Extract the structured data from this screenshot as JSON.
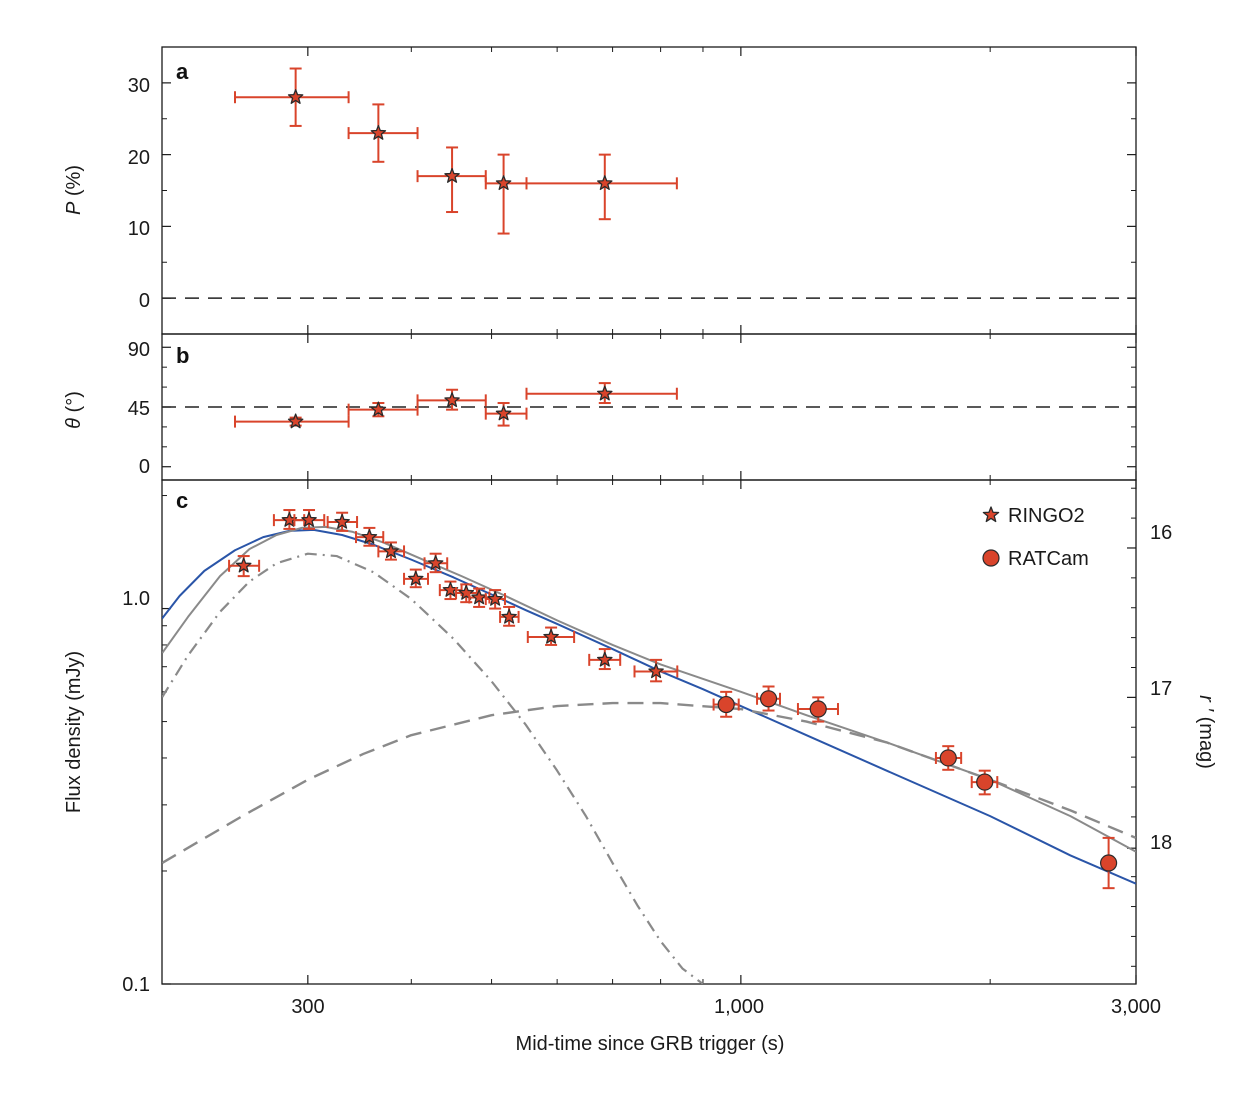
{
  "colors": {
    "data": "#d9442b",
    "err": "#d9442b",
    "blue": "#2a55a8",
    "gray": "#8a8a8a",
    "ref": "#222222",
    "frame": "#1a1a1a"
  },
  "chart_data": [
    {
      "id": "a",
      "type": "scatter",
      "panel_label": "a",
      "ylabel_var": "P",
      "ylabel_unit": " (%)",
      "xscale": "log",
      "xlim": [
        200,
        3000
      ],
      "ylim": [
        -5,
        35
      ],
      "yticks": [
        0,
        10,
        20,
        30
      ],
      "yticklabels": [
        "0",
        "10",
        "20",
        "30"
      ],
      "reference_line": 0,
      "points": [
        {
          "x": 290,
          "xlo": 245,
          "xhi": 336,
          "y": 28,
          "ylo": 24,
          "yhi": 32
        },
        {
          "x": 365,
          "xlo": 336,
          "xhi": 407,
          "y": 23,
          "ylo": 19,
          "yhi": 27
        },
        {
          "x": 448,
          "xlo": 407,
          "xhi": 492,
          "y": 17,
          "ylo": 12,
          "yhi": 21
        },
        {
          "x": 517,
          "xlo": 492,
          "xhi": 551,
          "y": 16,
          "ylo": 9,
          "yhi": 20
        },
        {
          "x": 685,
          "xlo": 551,
          "xhi": 837,
          "y": 16,
          "ylo": 11,
          "yhi": 20
        }
      ]
    },
    {
      "id": "b",
      "type": "scatter",
      "panel_label": "b",
      "ylabel_var": "θ",
      "ylabel_unit": " (°)",
      "xscale": "log",
      "xlim": [
        200,
        3000
      ],
      "ylim": [
        -10,
        100
      ],
      "yticks": [
        0,
        45,
        90
      ],
      "yticklabels": [
        "0",
        "45",
        "90"
      ],
      "reference_line": 45,
      "points": [
        {
          "x": 290,
          "xlo": 245,
          "xhi": 336,
          "y": 34,
          "ylo": 31,
          "yhi": 37
        },
        {
          "x": 365,
          "xlo": 336,
          "xhi": 407,
          "y": 43,
          "ylo": 38,
          "yhi": 48
        },
        {
          "x": 448,
          "xlo": 407,
          "xhi": 492,
          "y": 50,
          "ylo": 43,
          "yhi": 58
        },
        {
          "x": 517,
          "xlo": 492,
          "xhi": 551,
          "y": 40,
          "ylo": 31,
          "yhi": 48
        },
        {
          "x": 685,
          "xlo": 551,
          "xhi": 837,
          "y": 55,
          "ylo": 48,
          "yhi": 63
        }
      ]
    },
    {
      "id": "c",
      "type": "scatter",
      "panel_label": "c",
      "ylabel": "Flux density (mJy)",
      "right_ylabel_var": "r ′",
      "right_ylabel_unit": " (mag)",
      "xlabel": "Mid-time since GRB trigger (s)",
      "xscale": "log",
      "yscale": "log",
      "xlim": [
        200,
        3000
      ],
      "ylim": [
        0.1,
        2.2
      ],
      "xticks": [
        300,
        1000,
        3000
      ],
      "xticklabels": [
        "300",
        "1,000",
        "3,000"
      ],
      "yticks": [
        0.1,
        1.0
      ],
      "yticklabels": [
        "0.1",
        "1.0"
      ],
      "right_ticks": [
        16,
        17,
        18
      ],
      "right_ticklabels": [
        "16",
        "17",
        "18"
      ],
      "right_tick_flux": [
        1.45,
        0.58,
        0.23
      ],
      "legend": [
        "RINGO2",
        "RATCam"
      ],
      "series": [
        {
          "name": "RINGO2",
          "marker": "star",
          "points": [
            {
              "x": 251,
              "xlo": 241,
              "xhi": 262,
              "y": 1.3,
              "ylo": 1.22,
              "yhi": 1.38
            },
            {
              "x": 285,
              "xlo": 273,
              "xhi": 297,
              "y": 1.72,
              "ylo": 1.63,
              "yhi": 1.83
            },
            {
              "x": 301,
              "xlo": 289,
              "xhi": 314,
              "y": 1.72,
              "ylo": 1.63,
              "yhi": 1.83
            },
            {
              "x": 330,
              "xlo": 317,
              "xhi": 344,
              "y": 1.7,
              "ylo": 1.61,
              "yhi": 1.8
            },
            {
              "x": 356,
              "xlo": 343,
              "xhi": 370,
              "y": 1.55,
              "ylo": 1.47,
              "yhi": 1.64
            },
            {
              "x": 378,
              "xlo": 365,
              "xhi": 392,
              "y": 1.42,
              "ylo": 1.35,
              "yhi": 1.5
            },
            {
              "x": 405,
              "xlo": 392,
              "xhi": 419,
              "y": 1.2,
              "ylo": 1.14,
              "yhi": 1.27
            },
            {
              "x": 428,
              "xlo": 415,
              "xhi": 442,
              "y": 1.32,
              "ylo": 1.25,
              "yhi": 1.4
            },
            {
              "x": 446,
              "xlo": 433,
              "xhi": 460,
              "y": 1.12,
              "ylo": 1.06,
              "yhi": 1.18
            },
            {
              "x": 466,
              "xlo": 453,
              "xhi": 480,
              "y": 1.1,
              "ylo": 1.04,
              "yhi": 1.16
            },
            {
              "x": 483,
              "xlo": 470,
              "xhi": 497,
              "y": 1.07,
              "ylo": 1.01,
              "yhi": 1.13
            },
            {
              "x": 505,
              "xlo": 492,
              "xhi": 519,
              "y": 1.06,
              "ylo": 1.0,
              "yhi": 1.12
            },
            {
              "x": 525,
              "xlo": 512,
              "xhi": 539,
              "y": 0.95,
              "ylo": 0.9,
              "yhi": 1.01
            },
            {
              "x": 590,
              "xlo": 553,
              "xhi": 629,
              "y": 0.84,
              "ylo": 0.8,
              "yhi": 0.89
            },
            {
              "x": 685,
              "xlo": 656,
              "xhi": 715,
              "y": 0.73,
              "ylo": 0.69,
              "yhi": 0.78
            },
            {
              "x": 790,
              "xlo": 744,
              "xhi": 838,
              "y": 0.68,
              "ylo": 0.64,
              "yhi": 0.73
            }
          ]
        },
        {
          "name": "RATCam",
          "marker": "circle",
          "points": [
            {
              "x": 960,
              "xlo": 927,
              "xhi": 994,
              "y": 0.555,
              "ylo": 0.515,
              "yhi": 0.6
            },
            {
              "x": 1080,
              "xlo": 1046,
              "xhi": 1115,
              "y": 0.575,
              "ylo": 0.535,
              "yhi": 0.62
            },
            {
              "x": 1240,
              "xlo": 1172,
              "xhi": 1310,
              "y": 0.54,
              "ylo": 0.5,
              "yhi": 0.58
            },
            {
              "x": 1780,
              "xlo": 1720,
              "xhi": 1845,
              "y": 0.4,
              "ylo": 0.372,
              "yhi": 0.43
            },
            {
              "x": 1970,
              "xlo": 1900,
              "xhi": 2040,
              "y": 0.345,
              "ylo": 0.32,
              "yhi": 0.37
            },
            {
              "x": 2780,
              "xlo": 2780,
              "xhi": 2780,
              "y": 0.21,
              "ylo": 0.18,
              "yhi": 0.245
            }
          ]
        }
      ],
      "curves": [
        {
          "name": "blue-model",
          "style": "solid",
          "color": "blue",
          "points": [
            [
              200,
              0.94
            ],
            [
              210,
              1.08
            ],
            [
              225,
              1.26
            ],
            [
              245,
              1.43
            ],
            [
              265,
              1.55
            ],
            [
              285,
              1.61
            ],
            [
              305,
              1.62
            ],
            [
              330,
              1.57
            ],
            [
              360,
              1.48
            ],
            [
              400,
              1.35
            ],
            [
              450,
              1.21
            ],
            [
              500,
              1.09
            ],
            [
              550,
              0.99
            ],
            [
              600,
              0.91
            ],
            [
              700,
              0.78
            ],
            [
              800,
              0.68
            ],
            [
              900,
              0.61
            ],
            [
              1000,
              0.55
            ],
            [
              1200,
              0.46
            ],
            [
              1500,
              0.37
            ],
            [
              2000,
              0.28
            ],
            [
              2500,
              0.22
            ],
            [
              3000,
              0.185
            ]
          ]
        },
        {
          "name": "gray-total",
          "style": "solid",
          "color": "gray",
          "points": [
            [
              200,
              0.76
            ],
            [
              215,
              0.95
            ],
            [
              235,
              1.22
            ],
            [
              255,
              1.44
            ],
            [
              275,
              1.57
            ],
            [
              295,
              1.64
            ],
            [
              315,
              1.65
            ],
            [
              340,
              1.6
            ],
            [
              370,
              1.5
            ],
            [
              410,
              1.36
            ],
            [
              460,
              1.22
            ],
            [
              520,
              1.08
            ],
            [
              600,
              0.93
            ],
            [
              700,
              0.8
            ],
            [
              800,
              0.71
            ],
            [
              1000,
              0.6
            ],
            [
              1200,
              0.52
            ],
            [
              1500,
              0.44
            ],
            [
              2000,
              0.35
            ],
            [
              2500,
              0.28
            ],
            [
              3000,
              0.225
            ]
          ]
        },
        {
          "name": "gray-dashdot",
          "style": "dashdot",
          "color": "gray",
          "points": [
            [
              200,
              0.58
            ],
            [
              215,
              0.75
            ],
            [
              235,
              0.98
            ],
            [
              255,
              1.18
            ],
            [
              275,
              1.32
            ],
            [
              300,
              1.4
            ],
            [
              325,
              1.38
            ],
            [
              360,
              1.25
            ],
            [
              400,
              1.06
            ],
            [
              450,
              0.83
            ],
            [
              500,
              0.64
            ],
            [
              550,
              0.49
            ],
            [
              600,
              0.37
            ],
            [
              650,
              0.28
            ],
            [
              700,
              0.21
            ],
            [
              750,
              0.162
            ],
            [
              800,
              0.13
            ],
            [
              850,
              0.11
            ],
            [
              900,
              0.1
            ]
          ]
        },
        {
          "name": "gray-dashed",
          "style": "dashed",
          "color": "gray",
          "points": [
            [
              200,
              0.21
            ],
            [
              250,
              0.28
            ],
            [
              300,
              0.35
            ],
            [
              350,
              0.41
            ],
            [
              400,
              0.46
            ],
            [
              500,
              0.52
            ],
            [
              600,
              0.55
            ],
            [
              700,
              0.56
            ],
            [
              800,
              0.56
            ],
            [
              1000,
              0.54
            ],
            [
              1200,
              0.5
            ],
            [
              1500,
              0.44
            ],
            [
              2000,
              0.35
            ],
            [
              2500,
              0.29
            ],
            [
              3000,
              0.245
            ]
          ]
        }
      ]
    }
  ]
}
